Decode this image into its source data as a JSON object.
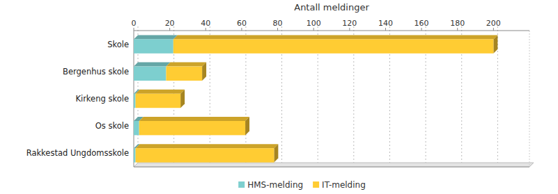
{
  "chart_data": {
    "type": "bar",
    "orientation": "horizontal",
    "stacked": true,
    "x_label": "Antall meldinger",
    "categories": [
      "Skole",
      "Bergenhus skole",
      "Kirkeng skole",
      "Os skole",
      "Rakkestad Ungdomsskole"
    ],
    "series": [
      {
        "name": "HMS-melding",
        "color": "#7dcfcf",
        "values": [
          22,
          18,
          1,
          3,
          1
        ]
      },
      {
        "name": "IT-melding",
        "color": "#ffcc33",
        "values": [
          178,
          20,
          25,
          59,
          77
        ]
      }
    ],
    "xlim": [
      0,
      220
    ],
    "xticks": [
      0,
      20,
      40,
      60,
      80,
      100,
      120,
      140,
      160,
      180,
      200
    ],
    "grid": true,
    "legend": "bottom"
  }
}
